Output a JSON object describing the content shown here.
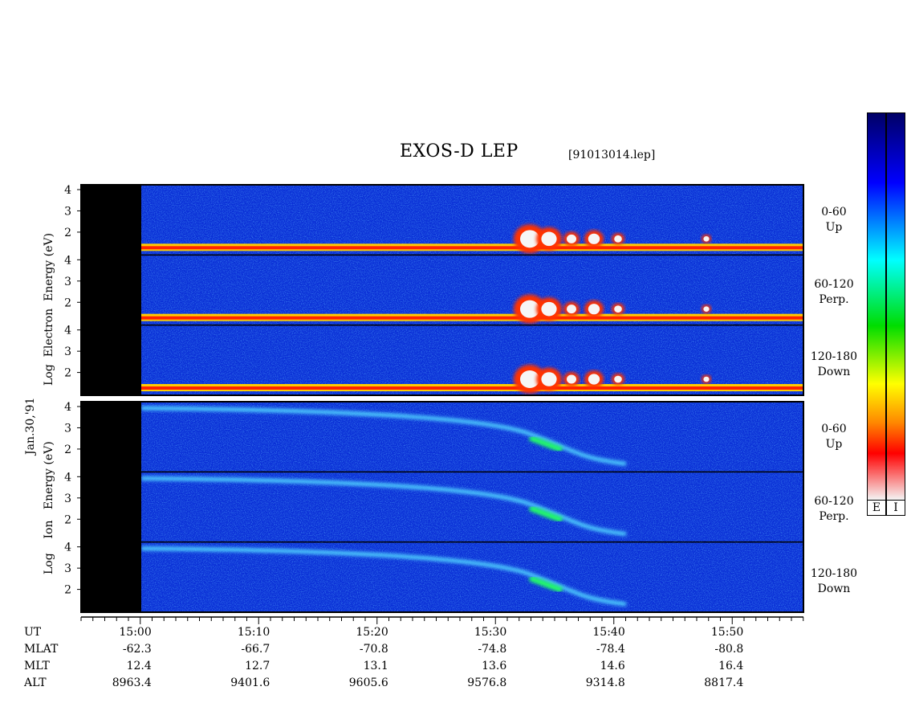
{
  "title": "EXOS-D LEP",
  "file_label": "[91013014.lep]",
  "date_label": "Jan.30,'91",
  "panels": [
    {
      "species": "Electron",
      "ylabel_parts": [
        "Log",
        "Electron",
        "Energy",
        "(eV)"
      ],
      "channels": [
        {
          "label_line1": "0-60",
          "label_line2": "Up"
        },
        {
          "label_line1": "60-120",
          "label_line2": "Perp."
        },
        {
          "label_line1": "120-180",
          "label_line2": "Down"
        }
      ]
    },
    {
      "species": "Ion",
      "ylabel_parts": [
        "Log",
        "Ion",
        "Energy",
        "(eV)"
      ],
      "channels": [
        {
          "label_line1": "0-60",
          "label_line2": "Up"
        },
        {
          "label_line1": "60-120",
          "label_line2": "Perp."
        },
        {
          "label_line1": "120-180",
          "label_line2": "Down"
        }
      ]
    }
  ],
  "colorbars": [
    {
      "label": "E"
    },
    {
      "label": "I"
    }
  ],
  "rows": {
    "names": [
      "UT",
      "MLAT",
      "MLT",
      "ALT"
    ],
    "columns": [
      {
        "UT": "15:00",
        "MLAT": "-62.3",
        "MLT": "12.4",
        "ALT": "8963.4"
      },
      {
        "UT": "15:10",
        "MLAT": "-66.7",
        "MLT": "12.7",
        "ALT": "9401.6"
      },
      {
        "UT": "15:20",
        "MLAT": "-70.8",
        "MLT": "13.1",
        "ALT": "9605.6"
      },
      {
        "UT": "15:30",
        "MLAT": "-74.8",
        "MLT": "13.6",
        "ALT": "9576.8"
      },
      {
        "UT": "15:40",
        "MLAT": "-78.4",
        "MLT": "14.6",
        "ALT": "9314.8"
      },
      {
        "UT": "15:50",
        "MLAT": "-80.8",
        "MLT": "16.4",
        "ALT": "8817.4"
      }
    ]
  },
  "chart_data": {
    "type": "heatmap",
    "title": "EXOS-D LEP",
    "x_ticks": [
      "15:00",
      "15:10",
      "15:20",
      "15:30",
      "15:40",
      "15:50"
    ],
    "x_range_minutes": [
      -5,
      56
    ],
    "no_data_until": "15:00",
    "y_ticks": [
      "1",
      "2",
      "3",
      "4"
    ],
    "y_scale": "log10 energy (eV)",
    "y_range": [
      1,
      4
    ],
    "colormap": [
      "#f4f4f4",
      "#ff0000",
      "#ffff00",
      "#00dd00",
      "#00ffff",
      "#0000ff",
      "#000066"
    ]
  },
  "colors": {
    "background_spectrogram": "#0a2fd6",
    "nodata": "#000000"
  }
}
